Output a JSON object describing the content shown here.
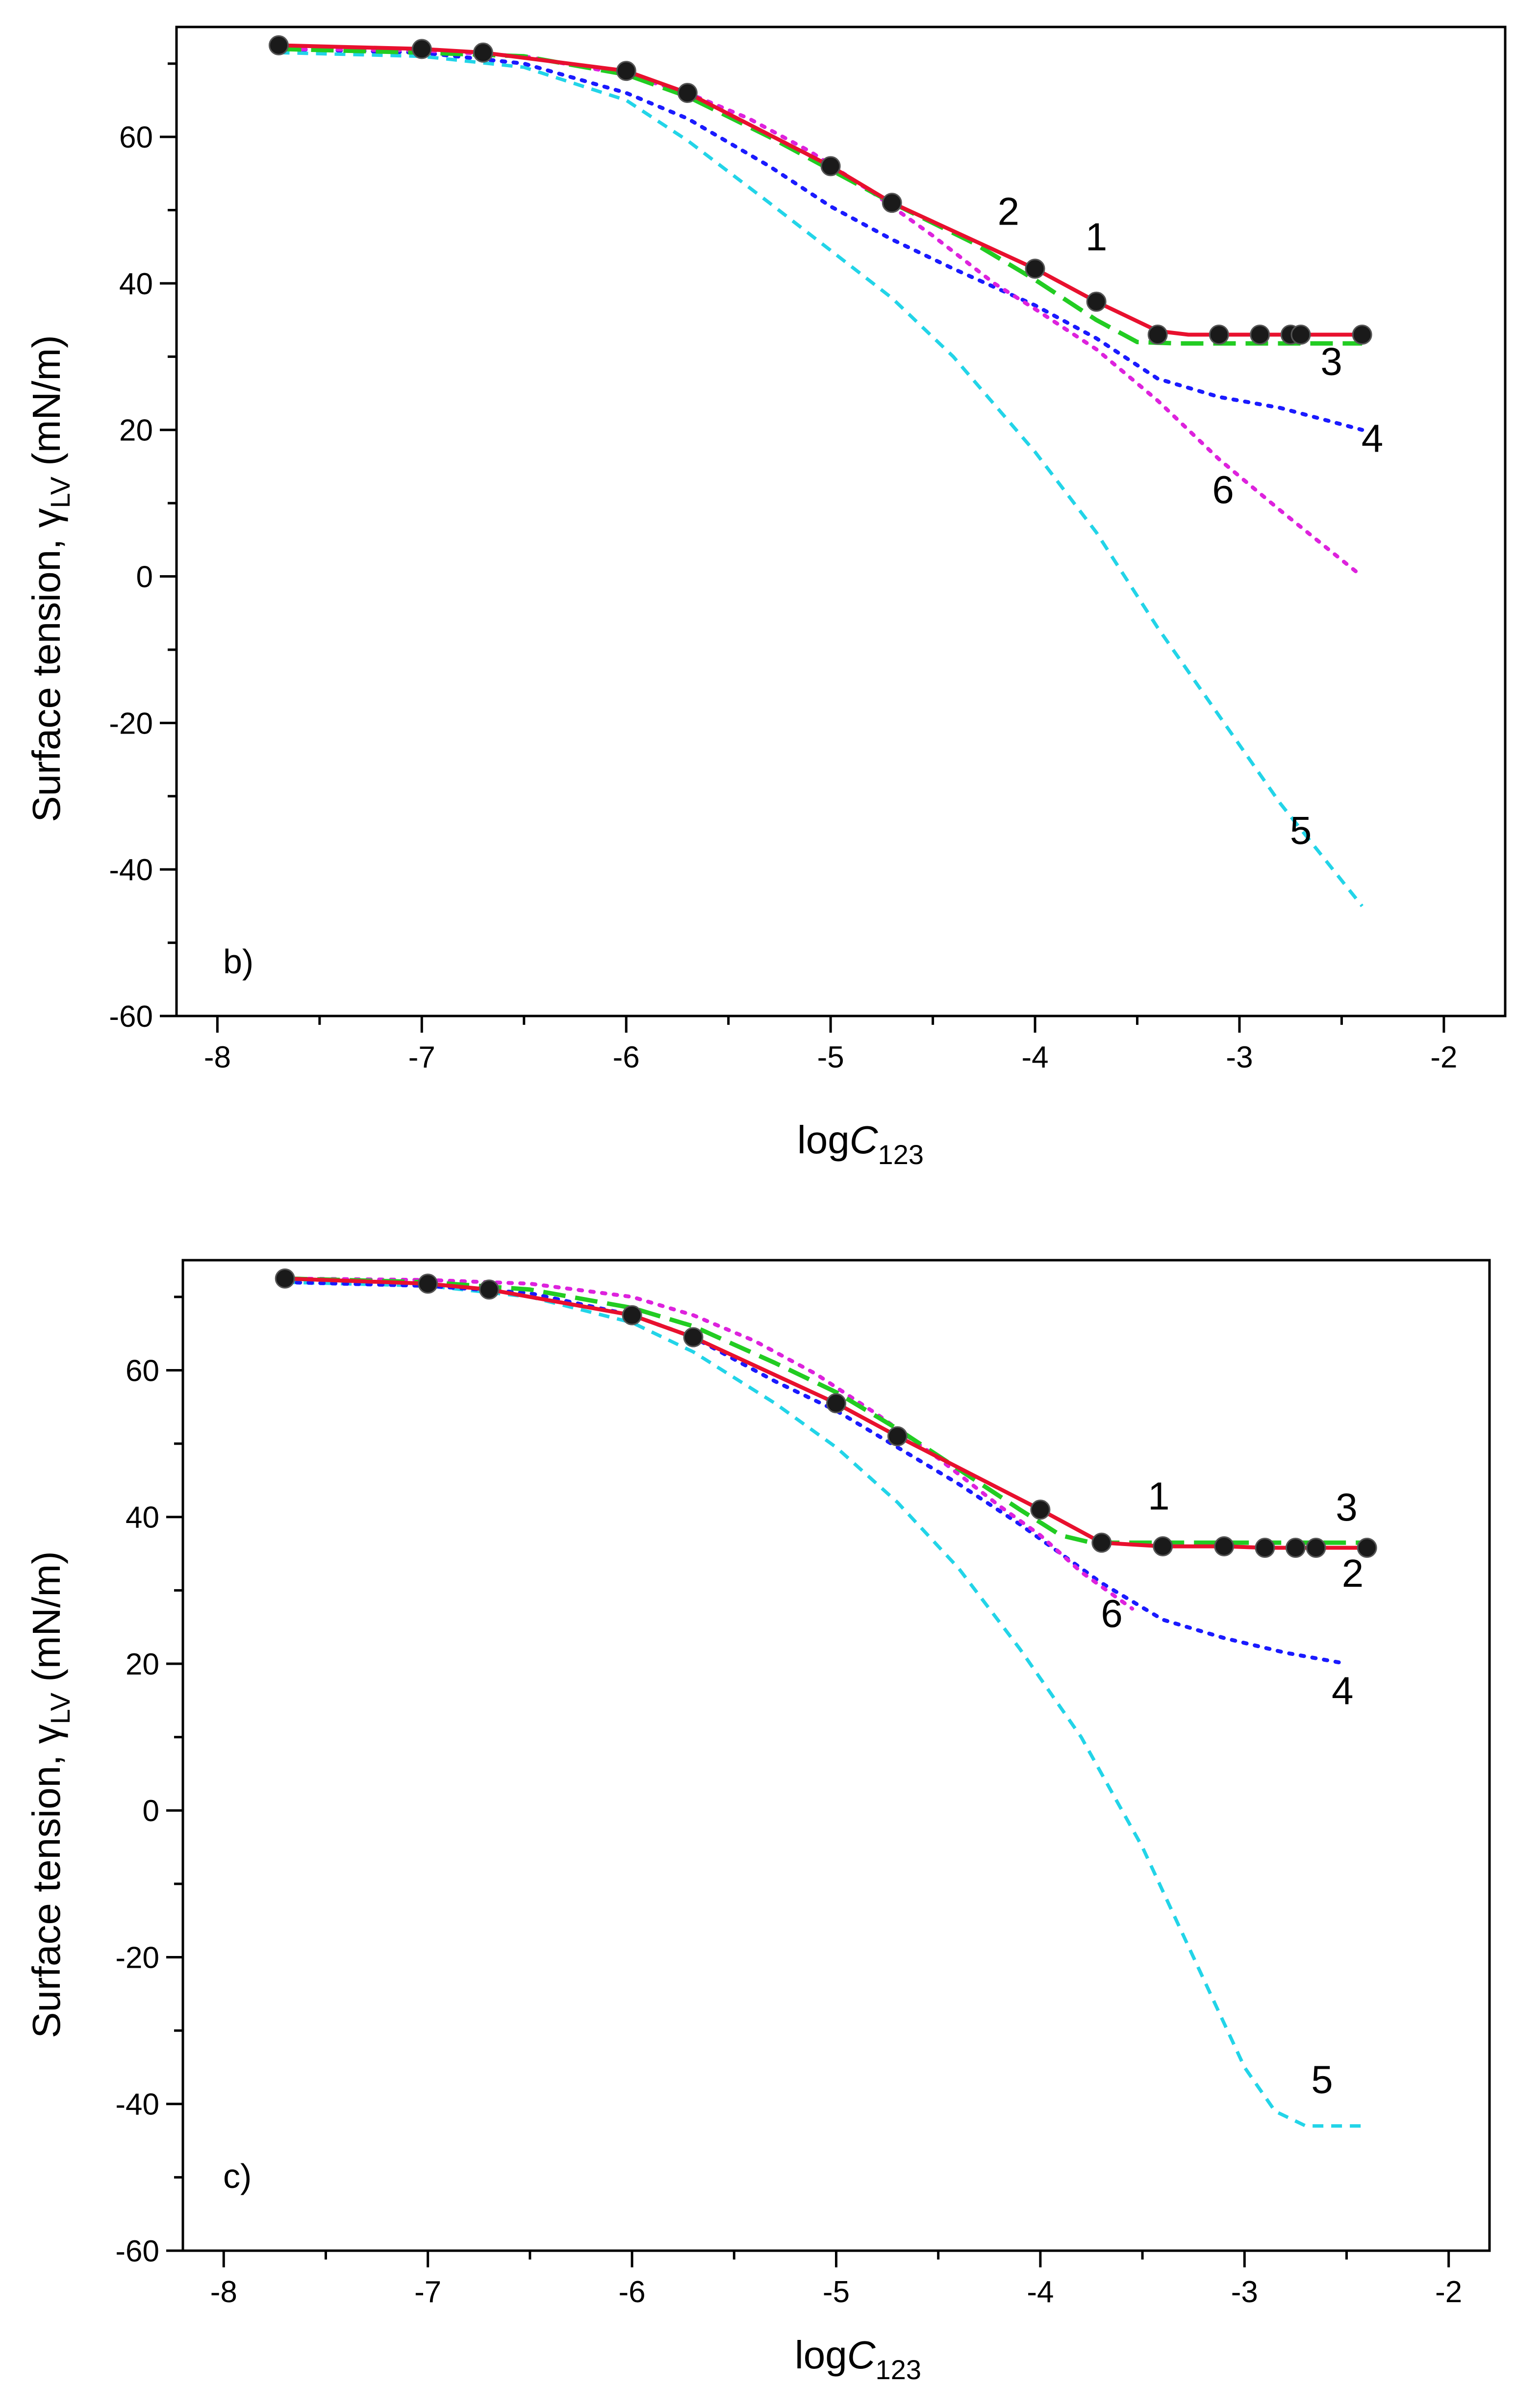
{
  "chart_data": [
    {
      "type": "line",
      "panel_label": "b)",
      "xlabel": {
        "main": "log",
        "italic": "C",
        "sub": "123"
      },
      "ylabel": {
        "main": "Surface tension, ",
        "greek": "γ",
        "sub": "LV",
        "unit": " (mN/m)"
      },
      "xlim": [
        -8.2,
        -1.7
      ],
      "ylim": [
        -60,
        75
      ],
      "xticks": [
        -8,
        -7,
        -6,
        -5,
        -4,
        -3,
        -2
      ],
      "xtick_labels": [
        "-8",
        "-7",
        "-6",
        "-5",
        "-4",
        "-3",
        "-2"
      ],
      "yticks": [
        -60,
        -40,
        -20,
        0,
        20,
        40,
        60
      ],
      "ytick_labels": [
        "-60",
        "-40",
        "-20",
        "0",
        "20",
        "40",
        "60"
      ],
      "series": [
        {
          "label": "1",
          "style": "markers",
          "color": "#000000",
          "x": [
            -7.7,
            -7.0,
            -6.7,
            -6.0,
            -5.7,
            -5.0,
            -4.7,
            -4.0,
            -3.7,
            -3.4,
            -3.1,
            -2.9,
            -2.75,
            -2.7,
            -2.4
          ],
          "y": [
            72.5,
            72.0,
            71.5,
            69.0,
            66.0,
            56.0,
            51.0,
            42.0,
            37.5,
            33.0,
            33.0,
            33.0,
            33.0,
            33.0,
            33.0
          ]
        },
        {
          "label": "2",
          "style": "solid",
          "color": "#e8102e",
          "x": [
            -7.7,
            -7.0,
            -6.7,
            -6.0,
            -5.7,
            -5.0,
            -4.7,
            -4.0,
            -3.7,
            -3.4,
            -3.25,
            -3.1,
            -2.9,
            -2.75,
            -2.7,
            -2.4
          ],
          "y": [
            72.5,
            72.0,
            71.5,
            69.0,
            66.0,
            56.0,
            51.0,
            42.0,
            37.5,
            33.5,
            33.0,
            33.0,
            33.0,
            33.0,
            33.0,
            33.0
          ]
        },
        {
          "label": "3",
          "style": "dashed",
          "color": "#22cc22",
          "x": [
            -7.7,
            -7.0,
            -6.5,
            -6.0,
            -5.7,
            -5.3,
            -5.0,
            -4.7,
            -4.3,
            -4.0,
            -3.7,
            -3.5,
            -3.3,
            -3.0,
            -2.4
          ],
          "y": [
            72.0,
            71.5,
            71.0,
            68.5,
            65.5,
            60.0,
            55.5,
            51.0,
            45.5,
            40.5,
            35.0,
            32.0,
            31.8,
            31.8,
            31.8
          ]
        },
        {
          "label": "4",
          "style": "dotted",
          "color": "#1a1aff",
          "x": [
            -7.7,
            -7.0,
            -6.5,
            -6.0,
            -5.7,
            -5.3,
            -5.0,
            -4.7,
            -4.4,
            -4.0,
            -3.7,
            -3.4,
            -3.1,
            -2.8,
            -2.4
          ],
          "y": [
            72.0,
            71.5,
            70.0,
            66.0,
            62.5,
            56.0,
            50.5,
            46.0,
            42.0,
            37.0,
            32.5,
            27.0,
            24.5,
            23.0,
            20.0
          ]
        },
        {
          "label": "5",
          "style": "short-dashed",
          "color": "#22d4e8",
          "x": [
            -7.7,
            -7.0,
            -6.5,
            -6.0,
            -5.7,
            -5.3,
            -5.0,
            -4.7,
            -4.4,
            -4.0,
            -3.7,
            -3.4,
            -3.1,
            -2.8,
            -2.4
          ],
          "y": [
            71.5,
            71.0,
            69.5,
            65.0,
            59.5,
            51.0,
            44.5,
            38.0,
            30.0,
            17.0,
            6.0,
            -7.0,
            -19.0,
            -31.0,
            -45.0
          ]
        },
        {
          "label": "6",
          "style": "dotted",
          "color": "#dd22dd",
          "x": [
            -7.7,
            -7.0,
            -6.5,
            -6.0,
            -5.7,
            -5.4,
            -5.1,
            -4.8,
            -4.5,
            -4.2,
            -4.0,
            -3.7,
            -3.4,
            -3.1,
            -2.8,
            -2.4
          ],
          "y": [
            72.0,
            71.8,
            71.0,
            68.5,
            66.0,
            62.5,
            58.0,
            52.5,
            46.5,
            40.0,
            36.5,
            31.0,
            24.0,
            16.0,
            9.0,
            0.0
          ]
        }
      ],
      "annotations": [
        {
          "text": "1",
          "x": -3.7,
          "y": 44.5
        },
        {
          "text": "2",
          "x": -4.13,
          "y": 48.0
        },
        {
          "text": "3",
          "x": -2.55,
          "y": 27.5
        },
        {
          "text": "4",
          "x": -2.35,
          "y": 17.0
        },
        {
          "text": "5",
          "x": -2.7,
          "y": -36.5
        },
        {
          "text": "6",
          "x": -3.08,
          "y": 10.0
        }
      ]
    },
    {
      "type": "line",
      "panel_label": "c)",
      "xlabel": {
        "main": "log",
        "italic": "C",
        "sub": "123"
      },
      "ylabel": {
        "main": "Surface tension, ",
        "greek": "γ",
        "sub": "LV",
        "unit": " (mN/m)"
      },
      "xlim": [
        -8.2,
        -1.8
      ],
      "ylim": [
        -60,
        75
      ],
      "xticks": [
        -8,
        -7,
        -6,
        -5,
        -4,
        -3,
        -2
      ],
      "xtick_labels": [
        "-8",
        "-7",
        "-6",
        "-5",
        "-4",
        "-3",
        "-2"
      ],
      "yticks": [
        -60,
        -40,
        -20,
        0,
        20,
        40,
        60
      ],
      "ytick_labels": [
        "-60",
        "-40",
        "-20",
        "0",
        "20",
        "40",
        "60"
      ],
      "series": [
        {
          "label": "1",
          "style": "markers",
          "color": "#000000",
          "x": [
            -7.7,
            -7.0,
            -6.7,
            -6.0,
            -5.7,
            -5.0,
            -4.7,
            -4.0,
            -3.7,
            -3.4,
            -3.1,
            -2.9,
            -2.75,
            -2.65,
            -2.4
          ],
          "y": [
            72.5,
            71.8,
            71.0,
            67.5,
            64.5,
            55.5,
            51.0,
            41.0,
            36.5,
            36.0,
            36.0,
            35.8,
            35.8,
            35.8,
            35.8
          ]
        },
        {
          "label": "2",
          "style": "solid",
          "color": "#e8102e",
          "x": [
            -7.7,
            -7.0,
            -6.7,
            -6.0,
            -5.7,
            -5.0,
            -4.7,
            -4.0,
            -3.7,
            -3.4,
            -3.1,
            -2.9,
            -2.75,
            -2.65,
            -2.4
          ],
          "y": [
            72.5,
            71.8,
            71.0,
            67.5,
            64.5,
            55.5,
            51.0,
            41.0,
            36.5,
            36.0,
            36.0,
            35.8,
            35.8,
            35.8,
            35.8
          ]
        },
        {
          "label": "3",
          "style": "dashed",
          "color": "#22cc22",
          "x": [
            -7.7,
            -7.0,
            -6.5,
            -6.0,
            -5.7,
            -5.3,
            -5.0,
            -4.7,
            -4.4,
            -4.1,
            -3.9,
            -3.75,
            -3.5,
            -3.0,
            -2.4
          ],
          "y": [
            72.5,
            72.0,
            71.0,
            68.5,
            66.0,
            61.0,
            57.0,
            52.0,
            46.5,
            41.0,
            37.5,
            36.5,
            36.5,
            36.5,
            36.5
          ]
        },
        {
          "label": "4",
          "style": "dotted",
          "color": "#1a1aff",
          "x": [
            -7.7,
            -7.0,
            -6.5,
            -6.0,
            -5.7,
            -5.3,
            -5.0,
            -4.7,
            -4.4,
            -4.1,
            -3.9,
            -3.7,
            -3.4,
            -3.1,
            -2.8,
            -2.5
          ],
          "y": [
            72.0,
            71.5,
            70.5,
            67.5,
            64.5,
            58.5,
            54.5,
            49.5,
            44.5,
            39.0,
            35.0,
            31.0,
            26.0,
            23.5,
            21.5,
            20.0
          ]
        },
        {
          "label": "5",
          "style": "short-dashed",
          "color": "#22d4e8",
          "x": [
            -7.7,
            -7.0,
            -6.5,
            -6.0,
            -5.7,
            -5.3,
            -5.0,
            -4.7,
            -4.4,
            -4.1,
            -3.8,
            -3.5,
            -3.2,
            -3.0,
            -2.85,
            -2.7,
            -2.4
          ],
          "y": [
            72.0,
            71.5,
            70.0,
            66.5,
            62.5,
            55.5,
            49.5,
            42.0,
            33.0,
            22.0,
            10.0,
            -5.0,
            -23.0,
            -35.0,
            -41.0,
            -43.0,
            -43.0
          ]
        },
        {
          "label": "6",
          "style": "dotted",
          "color": "#dd22dd",
          "x": [
            -7.7,
            -7.0,
            -6.5,
            -6.0,
            -5.7,
            -5.4,
            -5.1,
            -4.8,
            -4.5,
            -4.2,
            -4.0,
            -3.8,
            -3.55
          ],
          "y": [
            72.5,
            72.3,
            71.8,
            70.0,
            67.5,
            64.0,
            59.5,
            54.0,
            48.0,
            41.5,
            37.5,
            32.5,
            27.5
          ]
        }
      ],
      "annotations": [
        {
          "text": "1",
          "x": -3.42,
          "y": 41.0
        },
        {
          "text": "2",
          "x": -2.47,
          "y": 30.5
        },
        {
          "text": "3",
          "x": -2.5,
          "y": 39.5
        },
        {
          "text": "4",
          "x": -2.52,
          "y": 14.5
        },
        {
          "text": "5",
          "x": -2.62,
          "y": -38.5
        },
        {
          "text": "6",
          "x": -3.65,
          "y": 25.0
        }
      ]
    }
  ]
}
